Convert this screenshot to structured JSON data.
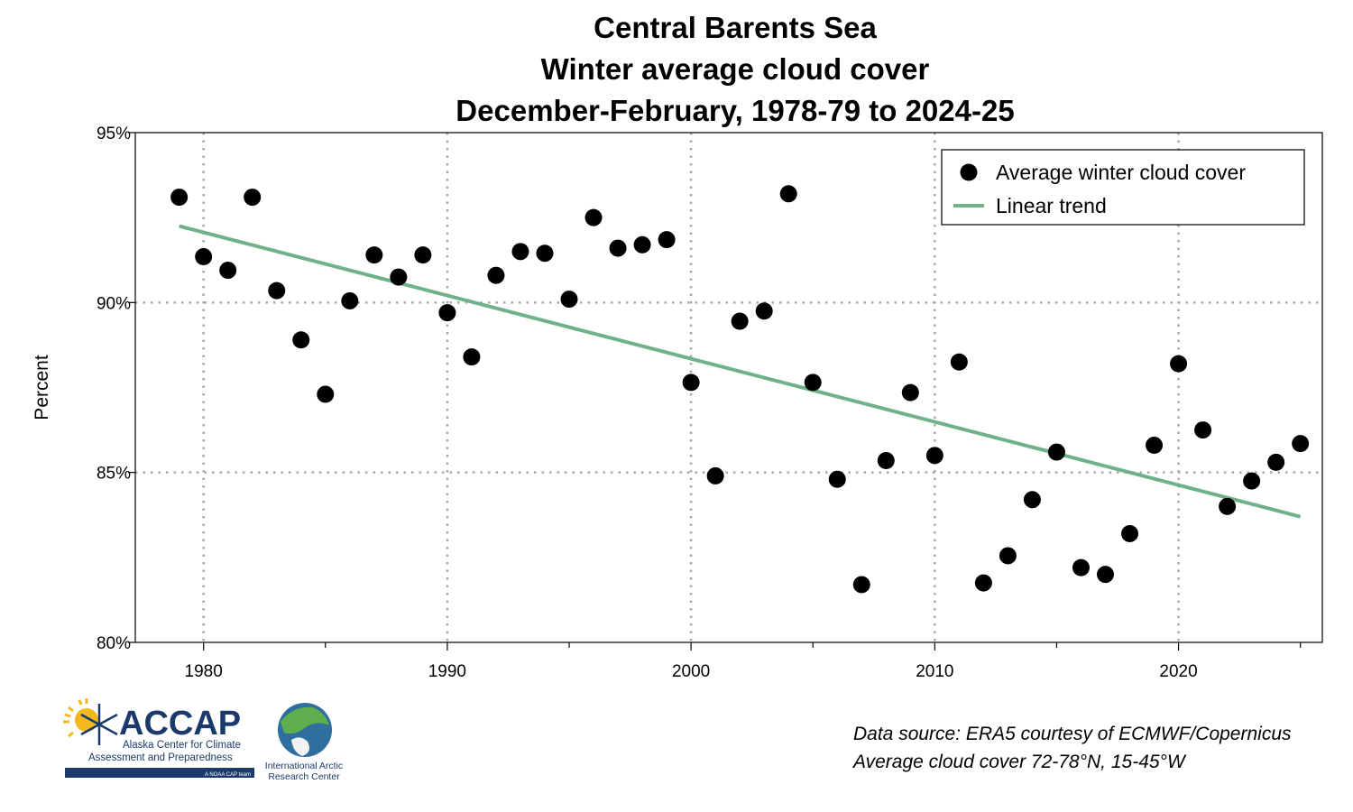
{
  "chart_data": {
    "type": "scatter",
    "title_lines": [
      "Central Barents Sea",
      "Winter average cloud cover",
      "December-February, 1978-79 to 2024-25"
    ],
    "xlabel": "",
    "ylabel": "Percent",
    "xlim": [
      1977.2,
      2025.9
    ],
    "ylim": [
      80,
      95
    ],
    "xticks": [
      1980,
      1990,
      2000,
      2010,
      2020
    ],
    "xtick_labels": [
      "1980",
      "1990",
      "2000",
      "2010",
      "2020"
    ],
    "yticks": [
      80,
      85,
      90,
      95
    ],
    "ytick_labels": [
      "80%",
      "85%",
      "90%",
      "95%"
    ],
    "grid": true,
    "legend_position": "top-right",
    "series": [
      {
        "name": "Average winter cloud cover",
        "kind": "scatter",
        "color": "#000000",
        "x": [
          1979,
          1980,
          1981,
          1982,
          1983,
          1984,
          1985,
          1986,
          1987,
          1988,
          1989,
          1990,
          1991,
          1992,
          1993,
          1994,
          1995,
          1996,
          1997,
          1998,
          1999,
          2000,
          2001,
          2002,
          2003,
          2004,
          2005,
          2006,
          2007,
          2008,
          2009,
          2010,
          2011,
          2012,
          2013,
          2014,
          2015,
          2016,
          2017,
          2018,
          2019,
          2020,
          2021,
          2022,
          2023,
          2024,
          2025
        ],
        "y": [
          93.1,
          91.35,
          90.95,
          93.1,
          90.35,
          88.9,
          87.3,
          90.05,
          91.4,
          90.75,
          91.4,
          89.7,
          88.4,
          90.8,
          91.5,
          91.45,
          90.1,
          92.5,
          91.6,
          91.7,
          91.85,
          87.65,
          84.9,
          89.45,
          89.75,
          93.2,
          87.65,
          84.8,
          81.7,
          85.35,
          87.35,
          85.5,
          88.25,
          81.75,
          82.55,
          84.2,
          85.6,
          82.2,
          82.0,
          83.2,
          85.8,
          88.2,
          86.25,
          84.0,
          84.75,
          85.3,
          85.85
        ]
      },
      {
        "name": "Linear trend",
        "kind": "line",
        "color": "#6fb28a",
        "x": [
          1979,
          2025
        ],
        "y": [
          92.25,
          83.7
        ]
      }
    ]
  },
  "source": {
    "line1": "Data source: ERA5 courtesy of ECMWF/Copernicus",
    "line2": "Average cloud cover 72-78°N, 15-45°W"
  },
  "logos": {
    "accap_name": "ACCAP",
    "accap_sub1": "Alaska Center for Climate",
    "accap_sub2": "Assessment and Preparedness",
    "accap_tag": "A NOAA CAP team",
    "iarc_line1": "International Arctic",
    "iarc_line2": "Research Center"
  },
  "colors": {
    "accap_blue": "#1b3a6b",
    "accent_yellow": "#f3b81b",
    "grid": "#a8a8a8"
  }
}
